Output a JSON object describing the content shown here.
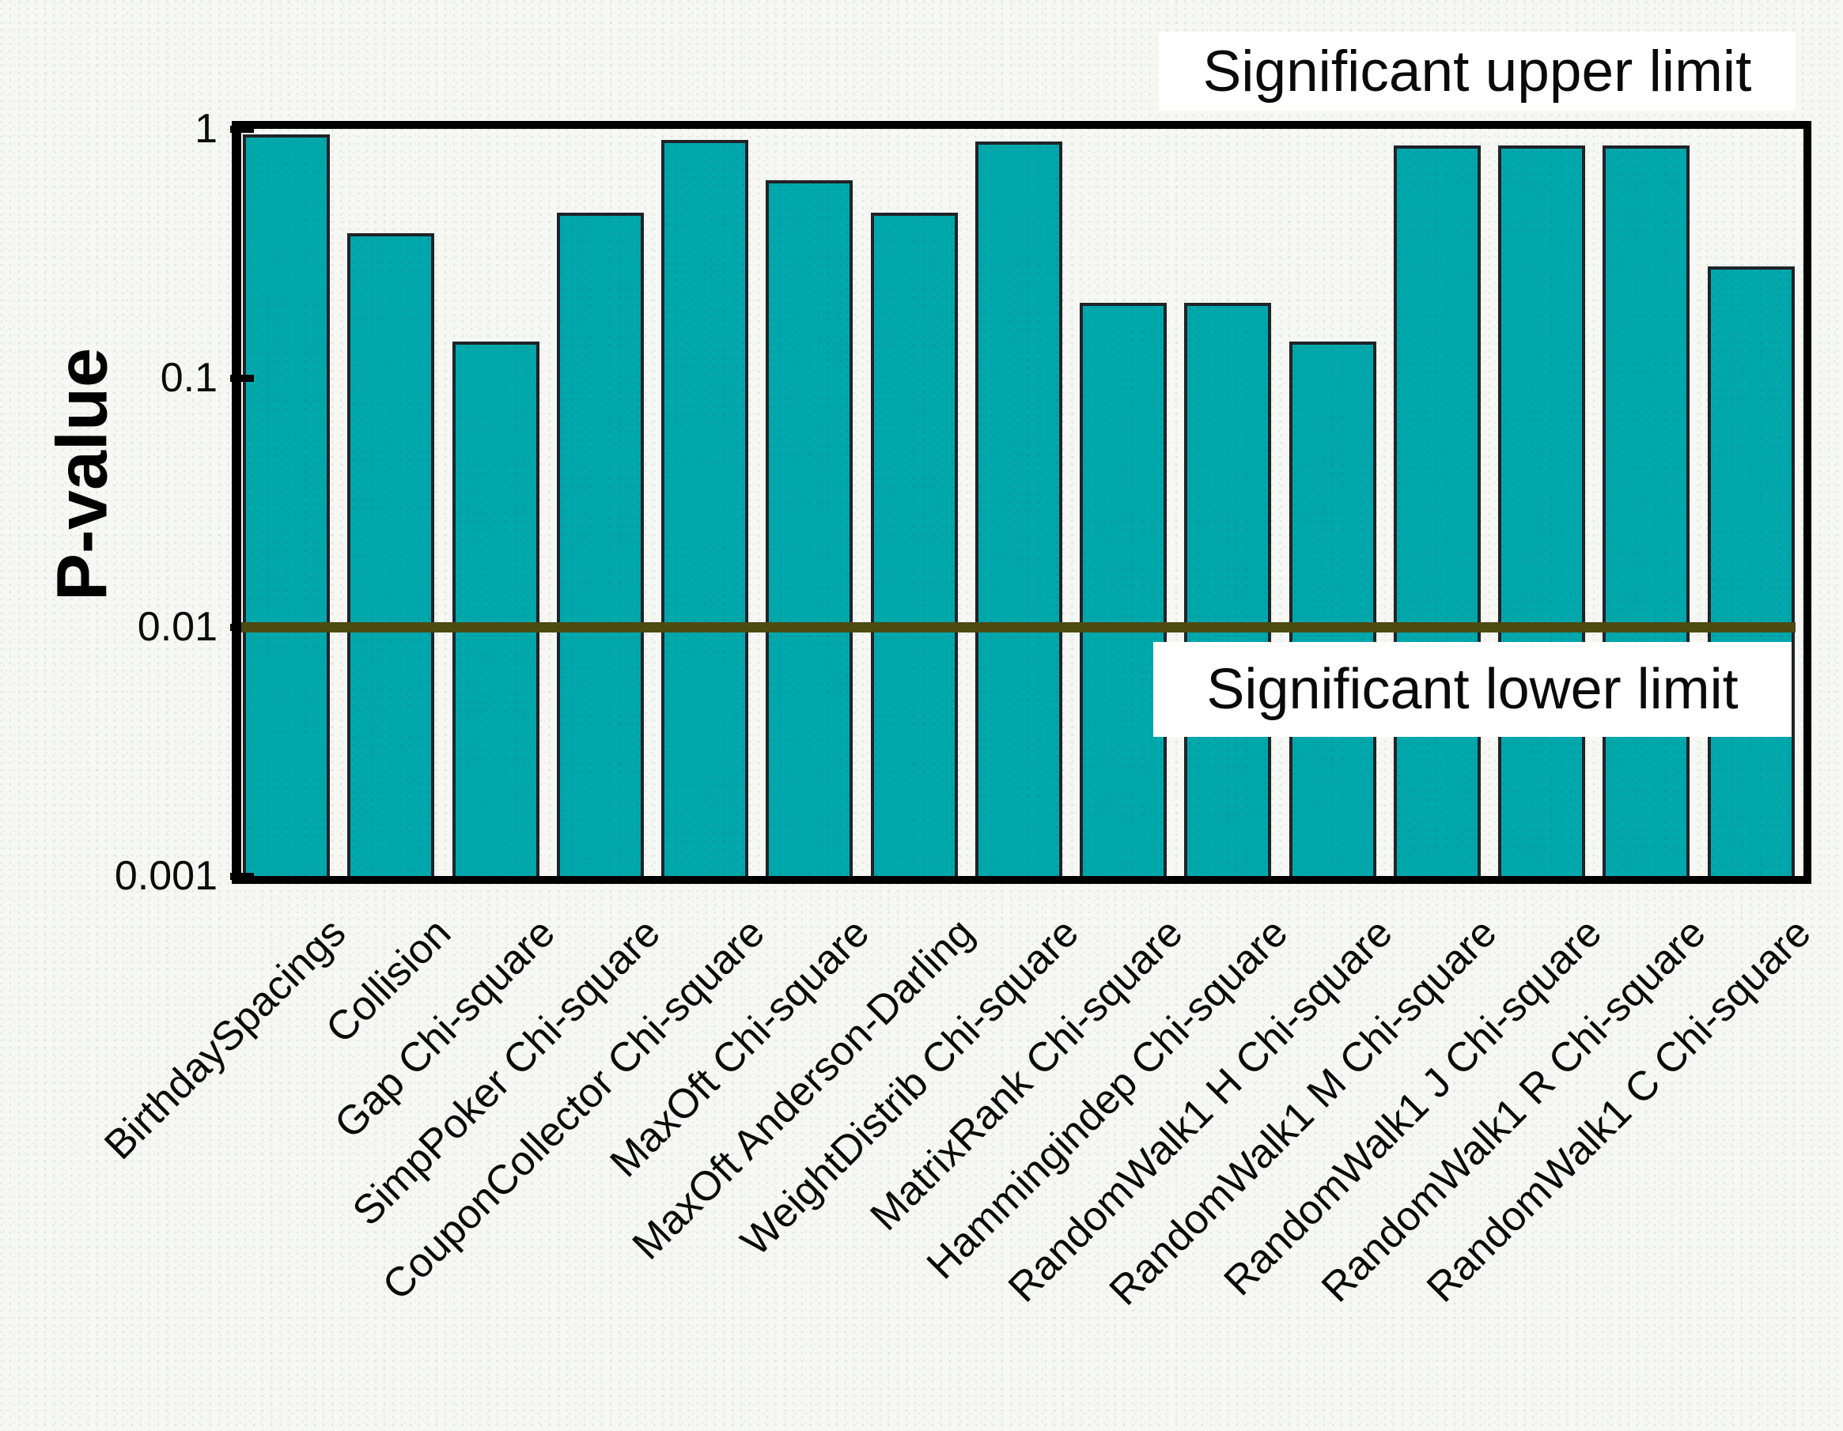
{
  "chart_data": {
    "type": "bar",
    "title": "",
    "xlabel": "",
    "ylabel": "P-value",
    "yscale": "log",
    "ylim": [
      0.001,
      1
    ],
    "ytick_labels": [
      "1",
      "0.1",
      "0.01",
      "0.001"
    ],
    "ytick_values": [
      1,
      0.1,
      0.01,
      0.001
    ],
    "grid": false,
    "legend": false,
    "bar_color": "#00a8ac",
    "bar_border_color": "#1f2328",
    "categories": [
      "BirthdaySpacings",
      "Collision",
      "Gap Chi-square",
      "SimpPoker Chi-square",
      "CouponCollector Chi-square",
      "MaxOft Chi-square",
      "MaxOft Anderson-Darling",
      "WeightDistrib Chi-square",
      "MatrixRank Chi-square",
      "Hammingindep Chi-square",
      "RandomWalk1 H Chi-square",
      "RandomWalk1 M Chi-square",
      "RandomWalk1 J Chi-square",
      "RandomWalk1 R Chi-square",
      "RandomWalk1 C Chi-square"
    ],
    "values": [
      0.95,
      0.38,
      0.14,
      0.46,
      0.9,
      0.62,
      0.46,
      0.89,
      0.2,
      0.2,
      0.14,
      0.86,
      0.86,
      0.86,
      0.28
    ],
    "threshold": {
      "value": 0.01,
      "line_color": "#4d4a12",
      "upper_label": "Significant upper limit",
      "lower_label": "Significant lower limit"
    }
  }
}
